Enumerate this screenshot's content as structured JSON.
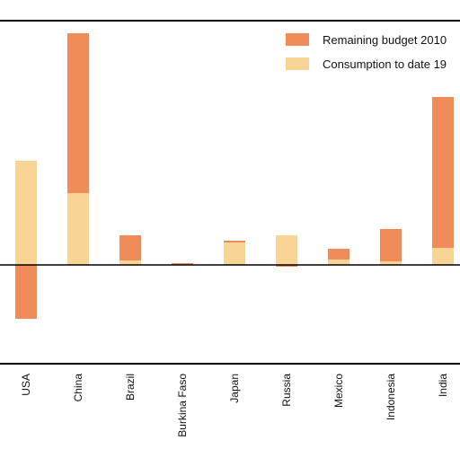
{
  "chart_data": {
    "type": "bar",
    "stacked": true,
    "categories": [
      "USA",
      "China",
      "Brazil",
      "Burkina Faso",
      "Japan",
      "Russia",
      "Mexico",
      "Indonesia",
      "India"
    ],
    "series": [
      {
        "name": "Consumption to date 19",
        "color": "#f8d595",
        "values": [
          116,
          80,
          5,
          0.5,
          25,
          33,
          6,
          4,
          19
        ]
      },
      {
        "name": "Remaining budget 2010",
        "color": "#ef8c5a",
        "values": [
          -60,
          178,
          28,
          1.5,
          2,
          -2,
          12,
          36,
          168
        ]
      }
    ],
    "ylim": [
      -110,
      272
    ],
    "grid": false,
    "legend_position": "top-right",
    "title": "",
    "xlabel": "",
    "ylabel": ""
  }
}
